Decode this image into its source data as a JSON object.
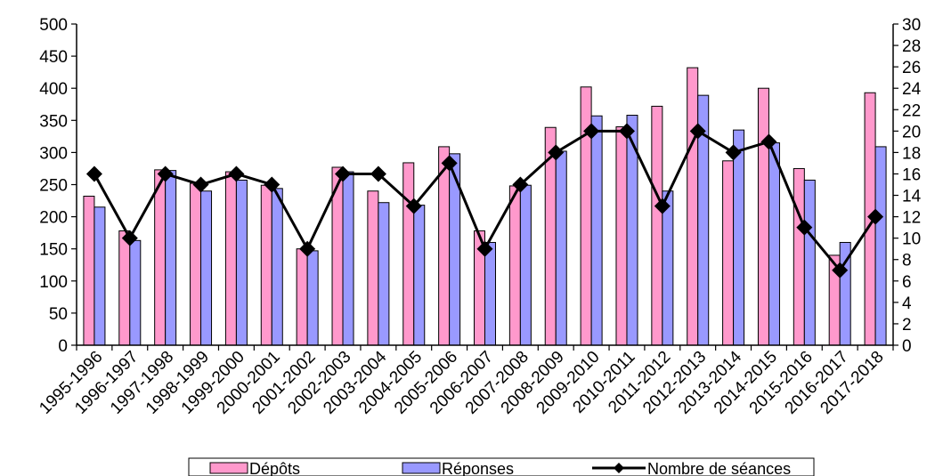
{
  "chart_data": {
    "type": "bar",
    "categories": [
      "1995-1996",
      "1996-1997",
      "1997-1998",
      "1998-1999",
      "1999-2000",
      "2000-2001",
      "2001-2002",
      "2002-2003",
      "2003-2004",
      "2004-2005",
      "2005-2006",
      "2006-2007",
      "2007-2008",
      "2008-2009",
      "2009-2010",
      "2010-2011",
      "2011-2012",
      "2012-2013",
      "2013-2014",
      "2014-2015",
      "2015-2016",
      "2016-2017",
      "2017-2018"
    ],
    "series": [
      {
        "name": "Dépôts",
        "kind": "bar",
        "axis": "left",
        "color": "#ff99cc",
        "values": [
          232,
          178,
          273,
          252,
          270,
          249,
          150,
          277,
          240,
          284,
          309,
          178,
          248,
          339,
          402,
          340,
          372,
          432,
          287,
          400,
          275,
          140,
          393
        ]
      },
      {
        "name": "Réponses",
        "kind": "bar",
        "axis": "left",
        "color": "#9999ff",
        "values": [
          215,
          163,
          272,
          240,
          257,
          244,
          147,
          270,
          222,
          218,
          298,
          160,
          249,
          302,
          357,
          358,
          240,
          389,
          335,
          315,
          257,
          160,
          309
        ]
      },
      {
        "name": "Nombre de séances",
        "kind": "line",
        "axis": "right",
        "color": "#000000",
        "values": [
          16,
          10,
          16,
          15,
          16,
          15,
          9,
          16,
          16,
          13,
          17,
          9,
          15,
          18,
          20,
          20,
          13,
          20,
          18,
          19,
          11,
          7,
          12
        ]
      }
    ],
    "y_left": {
      "min": 0,
      "max": 500,
      "step": 50
    },
    "y_right": {
      "min": 0,
      "max": 30,
      "step": 2
    },
    "legend": {
      "position": "bottom"
    },
    "grid": false
  }
}
